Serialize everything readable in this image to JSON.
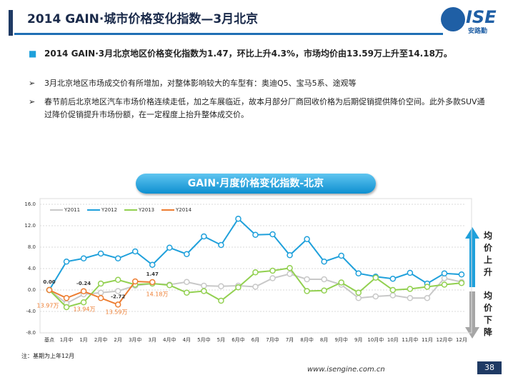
{
  "header": {
    "title": "2014 GAIN·城市价格变化指数—3月北京",
    "logo": "ISE",
    "logo_sub": "安路勤"
  },
  "bullets": [
    {
      "text": "2014 GAIN·3月北京地区价格变化指数为1.47，环比上升4.3%，市场均价由13.59万上升至14.18万。"
    },
    {
      "text": "3月北京地区市场成交价有所增加，对整体影响较大的车型有：奥迪Q5、宝马5系、途观等"
    },
    {
      "text": "春节前后北京地区汽车市场价格连续走低，加之车展临近，故本月部分厂商回收价格为后期促销提供降价空间。此外多款SUV通过降价促销提升市场份额，在一定程度上抬升整体成交价。"
    }
  ],
  "chart_data": {
    "type": "line",
    "title": "GAIN·月度价格变化指数-北京",
    "categories": [
      "基点",
      "1月中",
      "1月",
      "2月中",
      "2月",
      "3月中",
      "3月",
      "4月中",
      "4月",
      "5月中",
      "5月",
      "6月中",
      "6月",
      "7月中",
      "7月",
      "8月中",
      "8月",
      "9月中",
      "9月",
      "10月中",
      "10月",
      "11月中",
      "11月",
      "12月中",
      "12月"
    ],
    "ylim": [
      -8,
      16
    ],
    "yticks": [
      {
        "value": -8,
        "label": "-8.0"
      },
      {
        "value": -4,
        "label": "-4.0"
      },
      {
        "value": 0,
        "label": "0.0"
      },
      {
        "value": 4,
        "label": "4.0"
      },
      {
        "value": 8,
        "label": "8.0"
      },
      {
        "value": 12,
        "label": "12.0"
      },
      {
        "value": 16,
        "label": "16.0"
      }
    ],
    "grid": true,
    "legend": "top-left",
    "series": [
      {
        "name": "Y2011",
        "color": "#c8c8c8",
        "values": [
          0,
          -2.5,
          -0.8,
          -0.5,
          -0.2,
          0.8,
          1.2,
          1.0,
          1.5,
          0.8,
          0.7,
          0.8,
          0.6,
          2.2,
          3.0,
          2.0,
          2.0,
          1.0,
          -1.5,
          -1.2,
          -1.0,
          -1.5,
          -1.5,
          2.2,
          1.5
        ]
      },
      {
        "name": "Y2012",
        "color": "#1fa0db",
        "values": [
          0,
          5.3,
          5.9,
          6.8,
          5.9,
          7.2,
          4.7,
          7.9,
          6.7,
          10.0,
          8.4,
          13.3,
          10.3,
          10.4,
          6.5,
          9.5,
          5.3,
          6.4,
          3.1,
          2.5,
          2.1,
          3.2,
          1.2,
          3.1,
          2.9
        ]
      },
      {
        "name": "Y2013",
        "color": "#92d050",
        "values": [
          0,
          -3.2,
          -2.3,
          1.2,
          1.9,
          1.0,
          1.2,
          0.9,
          -0.5,
          -0.2,
          -2.0,
          0.5,
          3.3,
          3.6,
          4.1,
          -0.2,
          -0.1,
          1.4,
          -0.5,
          2.3,
          0.0,
          0.2,
          0.6,
          1.0,
          1.3
        ]
      },
      {
        "name": "Y2014",
        "color": "#ed7d31",
        "values": [
          0,
          -1.5,
          -0.24,
          -1.5,
          -2.72,
          1.6,
          1.47,
          null,
          null,
          null,
          null,
          null,
          null,
          null,
          null,
          null,
          null,
          null,
          null,
          null,
          null,
          null,
          null,
          null,
          null
        ],
        "value_labels": [
          "0.00",
          null,
          "-0.24",
          null,
          "-2.72",
          null,
          "1.47",
          null,
          null,
          null,
          null,
          null,
          null,
          null,
          null,
          null,
          null,
          null,
          null,
          null,
          null,
          null,
          null,
          null,
          null
        ]
      }
    ],
    "annotations": [
      "13.97万",
      "13.94万",
      "13.59万",
      "14.18万"
    ],
    "side_labels": [
      "均价上升",
      "均价下降"
    ],
    "note": "注：基期为上年12月"
  },
  "footer": {
    "url": "www.isengine.com.cn",
    "page": "38"
  }
}
